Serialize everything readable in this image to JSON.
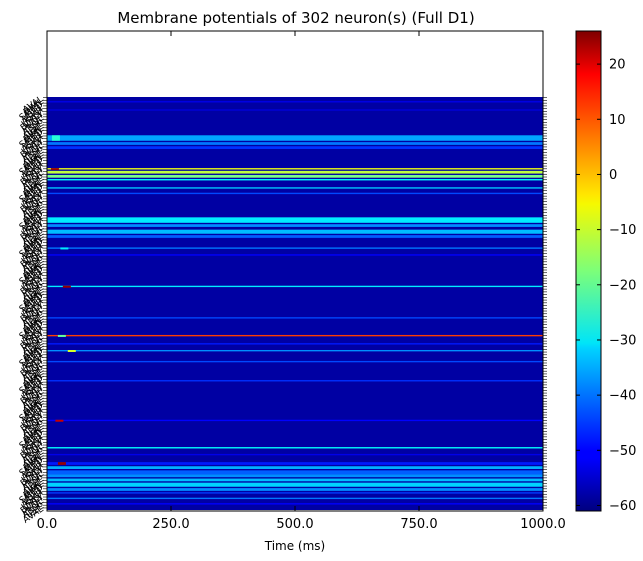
{
  "chart_data": {
    "type": "heatmap",
    "title": "Membrane potentials of 302 neuron(s) (Full D1)",
    "xlabel": "Time (ms)",
    "ylabel": "",
    "xlim": [
      0,
      1000
    ],
    "x_ticks": [
      "0.0",
      "250.0",
      "500.0",
      "750.0",
      "1000.0"
    ],
    "neuron_count": 302,
    "neuron_labels_legible": false,
    "baseline_potential": -58,
    "colorbar": {
      "colormap": "jet",
      "range": [
        -61,
        26
      ],
      "ticks": [
        "20",
        "10",
        "0",
        "−10",
        "−20",
        "−30",
        "−40",
        "−50",
        "−60"
      ],
      "tick_values": [
        20,
        10,
        0,
        -10,
        -20,
        -30,
        -40,
        -50,
        -60
      ]
    },
    "bands": [
      {
        "row": 3,
        "rows": 1,
        "value": -52
      },
      {
        "row": 9,
        "rows": 1,
        "value": -53
      },
      {
        "row": 28,
        "rows": 4,
        "value": -36,
        "spike_at_ms": 18,
        "spike_value": -25
      },
      {
        "row": 33,
        "rows": 2,
        "value": -40
      },
      {
        "row": 36,
        "rows": 2,
        "value": -46
      },
      {
        "row": 52,
        "rows": 1,
        "value": -8,
        "spike_at_ms": 16,
        "spike_value": 24
      },
      {
        "row": 54,
        "rows": 2,
        "value": -12
      },
      {
        "row": 57,
        "rows": 2,
        "value": -18
      },
      {
        "row": 60,
        "rows": 1,
        "value": -28
      },
      {
        "row": 66,
        "rows": 1,
        "value": -33
      },
      {
        "row": 70,
        "rows": 1,
        "value": -44
      },
      {
        "row": 88,
        "rows": 4,
        "value": -30
      },
      {
        "row": 93,
        "rows": 2,
        "value": -38
      },
      {
        "row": 97,
        "rows": 3,
        "value": -34
      },
      {
        "row": 101,
        "rows": 2,
        "value": -42
      },
      {
        "row": 110,
        "rows": 1,
        "value": -40,
        "spike_at_ms": 35,
        "spike_value": -30
      },
      {
        "row": 115,
        "rows": 1,
        "value": -50
      },
      {
        "row": 138,
        "rows": 1,
        "value": -30,
        "spike_at_ms": 40,
        "spike_value": 24
      },
      {
        "row": 161,
        "rows": 1,
        "value": -44
      },
      {
        "row": 174,
        "rows": 1,
        "value": 10,
        "spike_at_ms": 30,
        "spike_value": -20
      },
      {
        "row": 180,
        "rows": 1,
        "value": -48
      },
      {
        "row": 185,
        "rows": 1,
        "value": -38,
        "spike_at_ms": 50,
        "spike_value": -10
      },
      {
        "row": 193,
        "rows": 1,
        "value": -44
      },
      {
        "row": 207,
        "rows": 1,
        "value": -46
      },
      {
        "row": 236,
        "rows": 1,
        "value": -50,
        "spike_at_ms": 25,
        "spike_value": 20
      },
      {
        "row": 256,
        "rows": 1,
        "value": -28
      },
      {
        "row": 261,
        "rows": 1,
        "value": -52
      },
      {
        "row": 267,
        "rows": 2,
        "value": -48,
        "spike_at_ms": 30,
        "spike_value": 24
      },
      {
        "row": 270,
        "rows": 2,
        "value": -35
      },
      {
        "row": 273,
        "rows": 3,
        "value": -42
      },
      {
        "row": 276,
        "rows": 2,
        "value": -38
      },
      {
        "row": 279,
        "rows": 2,
        "value": -34
      },
      {
        "row": 282,
        "rows": 3,
        "value": -32
      },
      {
        "row": 286,
        "rows": 2,
        "value": -38
      },
      {
        "row": 289,
        "rows": 1,
        "value": -45
      },
      {
        "row": 293,
        "rows": 1,
        "value": -40
      },
      {
        "row": 297,
        "rows": 1,
        "value": -50
      }
    ]
  }
}
